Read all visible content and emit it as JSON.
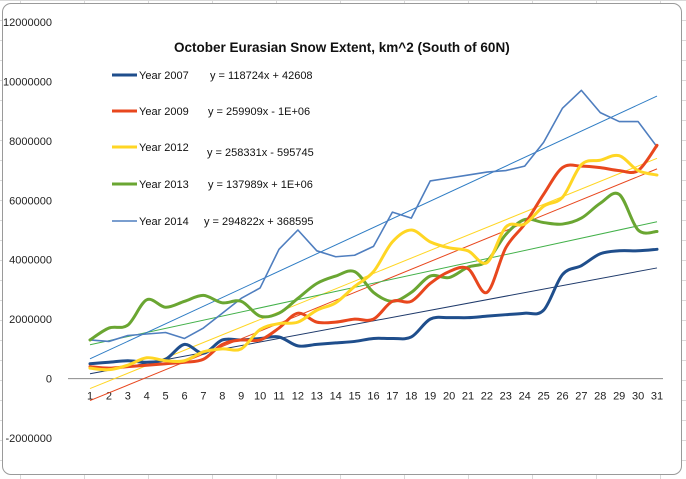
{
  "chart_data": {
    "type": "line",
    "title": "October Eurasian Snow Extent, km^2 (South of 60N)",
    "xlabel": "",
    "ylabel": "",
    "x": [
      1,
      2,
      3,
      4,
      5,
      6,
      7,
      8,
      9,
      10,
      11,
      12,
      13,
      14,
      15,
      16,
      17,
      18,
      19,
      20,
      21,
      22,
      23,
      24,
      25,
      26,
      27,
      28,
      29,
      30,
      31
    ],
    "ylim": [
      -2000000,
      12000000
    ],
    "yticks": [
      -2000000,
      0,
      2000000,
      4000000,
      6000000,
      8000000,
      10000000,
      12000000
    ],
    "grid": true,
    "legend_placement": "top-left",
    "series": [
      {
        "name": "Year 2007",
        "color": "#1f4e8c",
        "width": 3,
        "trendline": "y = 118724x + 42608",
        "trend_color": "#1f3a6b",
        "values": [
          500000,
          550000,
          600000,
          550000,
          650000,
          1150000,
          850000,
          1300000,
          1300000,
          1350000,
          1400000,
          1100000,
          1150000,
          1200000,
          1250000,
          1350000,
          1350000,
          1400000,
          2000000,
          2050000,
          2050000,
          2100000,
          2150000,
          2200000,
          2300000,
          3500000,
          3800000,
          4200000,
          4300000,
          4300000,
          4350000
        ]
      },
      {
        "name": "Year 2009",
        "color": "#e8471e",
        "width": 3,
        "trendline": "y = 259909x - 1E+06",
        "trend_color": "#e8471e",
        "values": [
          400000,
          350000,
          400000,
          450000,
          500000,
          550000,
          650000,
          1150000,
          1300000,
          1300000,
          1700000,
          2200000,
          1900000,
          1900000,
          2000000,
          2000000,
          2600000,
          2600000,
          3200000,
          3600000,
          3700000,
          2900000,
          4400000,
          5200000,
          6200000,
          7100000,
          7150000,
          7100000,
          7000000,
          7000000,
          7850000
        ]
      },
      {
        "name": "Year 2012",
        "color": "#ffd624",
        "width": 3,
        "trendline": "y = 258331x - 595745",
        "trend_color": "#ffd624",
        "values": [
          350000,
          300000,
          450000,
          700000,
          600000,
          600000,
          900000,
          1000000,
          1000000,
          1650000,
          1850000,
          1900000,
          2300000,
          2550000,
          3100000,
          3600000,
          4600000,
          5000000,
          4600000,
          4400000,
          4300000,
          3900000,
          5100000,
          5200000,
          5800000,
          6100000,
          7200000,
          7350000,
          7500000,
          7000000,
          6850000
        ]
      },
      {
        "name": "Year 2013",
        "color": "#6aa632",
        "width": 3,
        "trendline": "y = 137989x + 1E+06",
        "trend_color": "#43b14a",
        "values": [
          1300000,
          1700000,
          1800000,
          2650000,
          2400000,
          2600000,
          2800000,
          2550000,
          2600000,
          2100000,
          2200000,
          2700000,
          3200000,
          3450000,
          3600000,
          2900000,
          2600000,
          2900000,
          3450000,
          3400000,
          3750000,
          3950000,
          4850000,
          5350000,
          5250000,
          5200000,
          5400000,
          5900000,
          6200000,
          5000000,
          4950000
        ]
      },
      {
        "name": "Year 2014",
        "color": "#4f7ebf",
        "width": 1.6,
        "trendline": "y = 294822x + 368595",
        "trend_color": "#2e7cc4",
        "values": [
          1300000,
          1250000,
          1450000,
          1500000,
          1550000,
          1350000,
          1700000,
          2200000,
          2700000,
          3050000,
          4350000,
          5000000,
          4300000,
          4100000,
          4150000,
          4450000,
          5600000,
          5400000,
          6650000,
          6750000,
          6850000,
          6950000,
          7000000,
          7150000,
          7950000,
          9100000,
          9700000,
          8950000,
          8650000,
          8650000,
          7800000
        ]
      }
    ],
    "trendlines": [
      {
        "series": "Year 2007",
        "slope": 118724,
        "intercept": 42608
      },
      {
        "series": "Year 2009",
        "slope": 259909,
        "intercept": -1000000
      },
      {
        "series": "Year 2012",
        "slope": 258331,
        "intercept": -595745
      },
      {
        "series": "Year 2013",
        "slope": 137989,
        "intercept": 1000000
      },
      {
        "series": "Year 2014",
        "slope": 294822,
        "intercept": 368595
      }
    ]
  }
}
